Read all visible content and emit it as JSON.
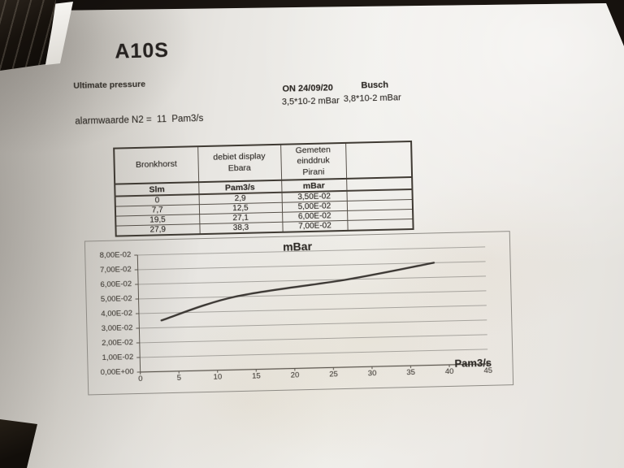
{
  "photo": {
    "paper_color": "#ebe9e5",
    "ink_color": "#2b2723",
    "background_color": "#17120e"
  },
  "document": {
    "title": "A10S",
    "subtitle": "Ultimate pressure",
    "alarm_text": "alarmwaarde N2 =  11  Pam3/s",
    "readings": {
      "left": {
        "label": "ON  24/09/20",
        "value": "3,5*10-2 mBar"
      },
      "right": {
        "label": "Busch",
        "value": "3,8*10-2 mBar"
      }
    },
    "table": {
      "headers": [
        "Bronkhorst",
        "debiet display\nEbara",
        "Gemeten\neinddruk\nPirani",
        ""
      ],
      "units": [
        "Slm",
        "Pam3/s",
        "mBar",
        ""
      ],
      "rows": [
        [
          "0",
          "2,9",
          "3,50E-02",
          ""
        ],
        [
          "7,7",
          "12,5",
          "5,00E-02",
          ""
        ],
        [
          "19,5",
          "27,1",
          "6,00E-02",
          ""
        ],
        [
          "27,9",
          "38,3",
          "7,00E-02",
          ""
        ]
      ]
    }
  },
  "chart_data": {
    "type": "line",
    "title": "mBar",
    "xlabel": "Pam3/s",
    "ylabel": "",
    "x": [
      2.9,
      12.5,
      27.1,
      38.3
    ],
    "y": [
      0.035,
      0.05,
      0.06,
      0.07
    ],
    "xlim": [
      0,
      45
    ],
    "ylim": [
      0,
      0.08
    ],
    "x_ticks": [
      0,
      5,
      10,
      15,
      20,
      25,
      30,
      35,
      40,
      45
    ],
    "x_tick_labels": [
      "0",
      "5",
      "10",
      "15",
      "20",
      "25",
      "30",
      "35",
      "40",
      "45"
    ],
    "y_tick_labels": [
      "0,00E+00",
      "1,00E-02",
      "2,00E-02",
      "3,00E-02",
      "4,00E-02",
      "5,00E-02",
      "6,00E-02",
      "7,00E-02",
      "8,00E-02"
    ],
    "grid": "horizontal-only",
    "legend": "none",
    "line_color": "#3b3733"
  }
}
